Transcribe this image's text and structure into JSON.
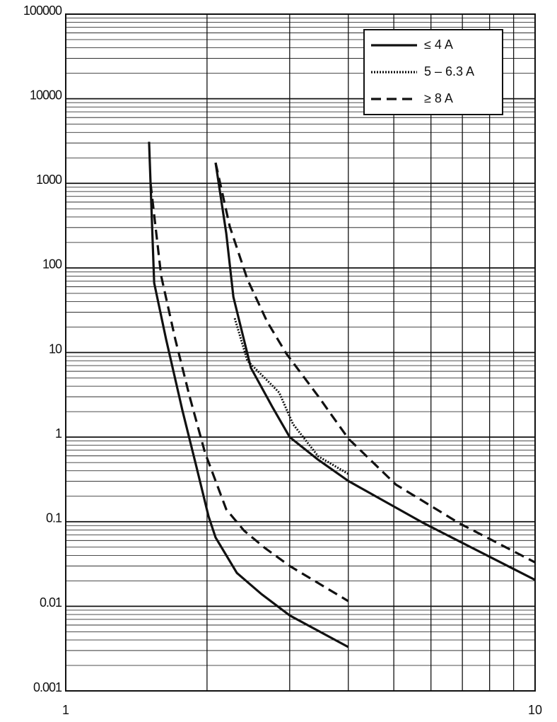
{
  "chart_data": {
    "type": "line",
    "xlog": true,
    "ylog": true,
    "grid": true,
    "legend": "upper right",
    "xlim": [
      1,
      10
    ],
    "xticks": [
      1,
      10
    ],
    "ylim": [
      0.001,
      100000
    ],
    "yticks": [
      0.001,
      0.01,
      0.1,
      1,
      10,
      100,
      1000,
      10000,
      100000
    ],
    "series": [
      {
        "name": "≤ 4 A",
        "color": "#111111",
        "dash": "solid",
        "x": [
          1.505,
          1.516,
          1.543,
          1.636,
          1.772,
          1.899,
          2.015,
          2.086,
          2.315,
          2.614,
          3.0,
          4.0,
          null,
          2.086,
          2.198,
          2.276,
          2.48,
          2.754,
          3.0,
          3.45,
          4.0,
          5.8,
          10
        ],
        "values": [
          3100,
          1000,
          66.5,
          14.3,
          2.08,
          0.446,
          0.116,
          0.065,
          0.0248,
          0.0139,
          0.0078,
          0.0033,
          null,
          1754,
          256,
          45.3,
          6.6,
          2.29,
          1.0,
          0.54,
          0.303,
          0.0955,
          0.0205
        ]
      },
      {
        "name": "5 – 6.3 A",
        "color": "#111111",
        "dash": "dotted",
        "x": [
          2.291,
          2.438,
          2.706,
          2.85,
          3.05,
          3.45,
          4.0
        ],
        "values": [
          25.4,
          8.0,
          4.49,
          3.36,
          1.42,
          0.594,
          0.367
        ]
      },
      {
        "name": "≥ 8 A",
        "color": "#111111",
        "dash": "dashed",
        "x": [
          1.516,
          1.597,
          1.712,
          1.835,
          1.98,
          2.198,
          2.397,
          2.659,
          3.0,
          4.0,
          null,
          2.086,
          2.236,
          2.438,
          2.687,
          2.951,
          3.45,
          4.0,
          5.05,
          6.9,
          10
        ],
        "values": [
          1000,
          80.6,
          14.3,
          3.05,
          0.655,
          0.14,
          0.0787,
          0.0487,
          0.03,
          0.0115,
          null,
          1754,
          310,
          73.3,
          23.1,
          9.7,
          3.05,
          0.96,
          0.275,
          0.0955,
          0.033
        ]
      }
    ]
  }
}
